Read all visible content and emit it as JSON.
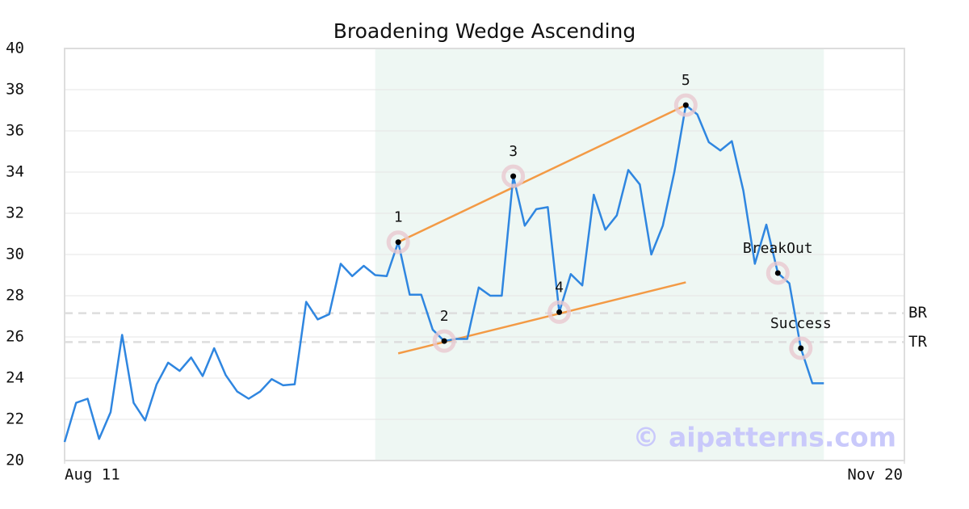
{
  "chart_data": {
    "type": "line",
    "title": "Broadening Wedge Ascending",
    "watermark": "© aipatterns.com",
    "color": "#2f86e0",
    "x": [
      0,
      1,
      2,
      3,
      4,
      5,
      6,
      7,
      8,
      9,
      10,
      11,
      12,
      13,
      14,
      15,
      16,
      17,
      18,
      19,
      20,
      21,
      22,
      23,
      24,
      25,
      26,
      27,
      28,
      29,
      30,
      31,
      32,
      33,
      34,
      35,
      36,
      37,
      38,
      39,
      40,
      41,
      42,
      43,
      44,
      45,
      46,
      47,
      48,
      49,
      50,
      51,
      52,
      53,
      54,
      55,
      56,
      57,
      58,
      59,
      60,
      61,
      62,
      63,
      64,
      65,
      66
    ],
    "values": [
      20.9,
      22.8,
      23.0,
      21.05,
      22.35,
      26.1,
      22.8,
      21.95,
      23.7,
      24.75,
      24.35,
      25.0,
      24.1,
      25.45,
      24.15,
      23.35,
      23.0,
      23.35,
      23.95,
      23.65,
      23.7,
      27.7,
      26.85,
      27.1,
      29.55,
      28.95,
      29.45,
      29.0,
      28.95,
      30.6,
      28.05,
      28.05,
      26.35,
      25.8,
      25.9,
      25.9,
      28.4,
      28.0,
      28.0,
      33.8,
      31.4,
      32.2,
      32.3,
      27.2,
      29.05,
      28.5,
      32.9,
      31.2,
      31.9,
      34.1,
      33.4,
      30.0,
      31.4,
      34.0,
      37.25,
      36.8,
      35.45,
      35.05,
      35.5,
      33.1,
      29.55,
      31.45,
      29.1,
      28.6,
      25.45,
      23.75,
      23.75
    ],
    "xlim": [
      0,
      73
    ],
    "xticks": [
      {
        "value": 0,
        "label": "Aug 11"
      },
      {
        "value": 73,
        "label": "Nov 20"
      }
    ],
    "ylim": [
      20,
      40
    ],
    "yticks": [
      20,
      22,
      24,
      26,
      28,
      30,
      32,
      34,
      36,
      38,
      40
    ],
    "grid": true,
    "shade": {
      "x": [
        27,
        66
      ],
      "color": "#eef7f3"
    },
    "hlines": [
      {
        "label": "BR",
        "value": 27.15
      },
      {
        "label": "TR",
        "value": 25.75
      }
    ],
    "trendlines": [
      {
        "x": [
          29,
          54
        ],
        "y": [
          30.6,
          37.25
        ],
        "color": "#f39a45"
      },
      {
        "x": [
          29,
          54
        ],
        "y": [
          25.2,
          28.65
        ],
        "color": "#f39a45"
      }
    ],
    "annotations": [
      {
        "label": "1",
        "x": 29,
        "y": 30.6
      },
      {
        "label": "2",
        "x": 33,
        "y": 25.8
      },
      {
        "label": "3",
        "x": 39,
        "y": 33.8
      },
      {
        "label": "4",
        "x": 43,
        "y": 27.2
      },
      {
        "label": "5",
        "x": 54,
        "y": 37.25
      },
      {
        "label": "BreakOut",
        "x": 62,
        "y": 29.1
      },
      {
        "label": "Success",
        "x": 64,
        "y": 25.45
      }
    ]
  }
}
